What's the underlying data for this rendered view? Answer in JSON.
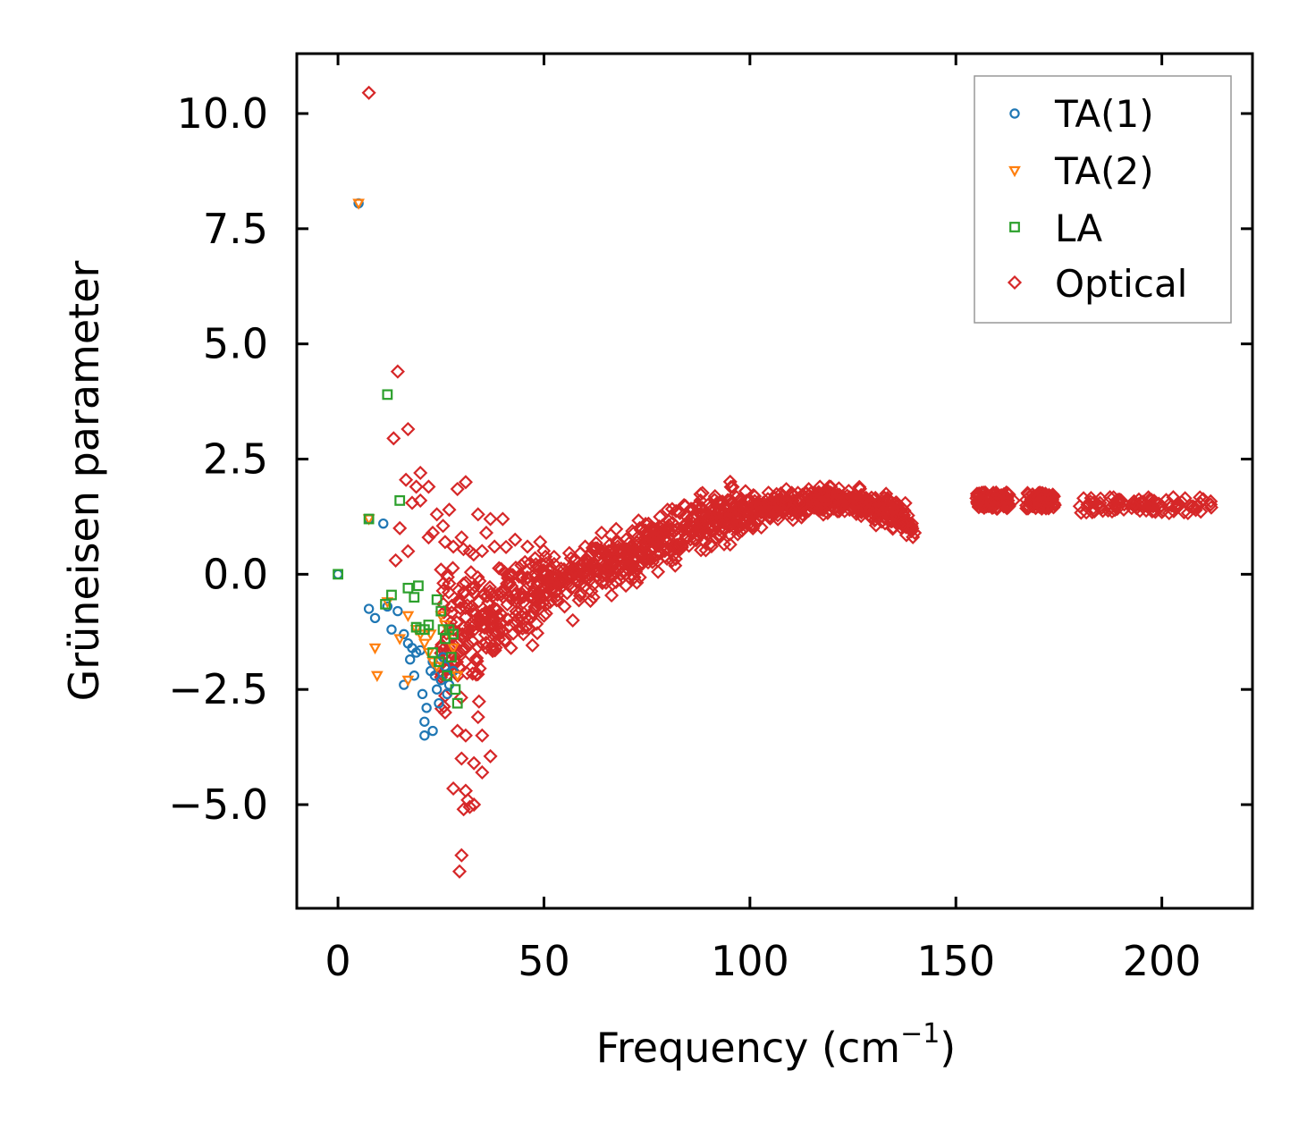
{
  "chart_data": {
    "type": "scatter",
    "title": "",
    "xlabel": "Frequency (cm",
    "xlabel_sup": "−1",
    "xlabel_close": ")",
    "ylabel": "Grüneisen parameter",
    "xlim": [
      -10,
      222
    ],
    "ylim": [
      -7.25,
      11.3
    ],
    "xticks": [
      0,
      50,
      100,
      150,
      200
    ],
    "xtick_labels": [
      "0",
      "50",
      "100",
      "150",
      "200"
    ],
    "yticks": [
      -5.0,
      -2.5,
      0.0,
      2.5,
      5.0,
      7.5,
      10.0
    ],
    "ytick_labels": [
      "−5.0",
      "−2.5",
      "0.0",
      "2.5",
      "5.0",
      "7.5",
      "10.0"
    ],
    "grid": false,
    "legend_position": "top-right",
    "series": [
      {
        "name": "TA(1)",
        "marker": "circle",
        "color": "#1f77b4",
        "points": [
          [
            0,
            0
          ],
          [
            5,
            8.05
          ],
          [
            7.5,
            1.2
          ],
          [
            11,
            1.1
          ],
          [
            7.5,
            -0.75
          ],
          [
            9,
            -0.95
          ],
          [
            12,
            -0.7
          ],
          [
            13,
            -1.2
          ],
          [
            14.5,
            -0.8
          ],
          [
            16,
            -1.3
          ],
          [
            17,
            -1.5
          ],
          [
            18,
            -1.6
          ],
          [
            19,
            -1.7
          ],
          [
            20,
            -1.65
          ],
          [
            18.5,
            -2.2
          ],
          [
            16,
            -2.4
          ],
          [
            20.5,
            -2.6
          ],
          [
            21.5,
            -2.9
          ],
          [
            21,
            -3.2
          ],
          [
            21,
            -3.5
          ],
          [
            23,
            -3.4
          ],
          [
            22.5,
            -2.1
          ],
          [
            23.5,
            -2.2
          ],
          [
            24,
            -2.5
          ],
          [
            24.5,
            -2.8
          ],
          [
            25,
            -2.3
          ],
          [
            26,
            -2.0
          ],
          [
            26.5,
            -2.6
          ],
          [
            27,
            -2.4
          ],
          [
            28,
            -2.1
          ],
          [
            23,
            -1.9
          ],
          [
            25.5,
            -1.8
          ],
          [
            17.5,
            -1.85
          ]
        ]
      },
      {
        "name": "TA(2)",
        "marker": "triangle-down",
        "color": "#ff7f0e",
        "points": [
          [
            5,
            8.05
          ],
          [
            7.5,
            1.2
          ],
          [
            9,
            -1.6
          ],
          [
            9.5,
            -2.2
          ],
          [
            12,
            -0.6
          ],
          [
            15,
            -1.4
          ],
          [
            17,
            -0.9
          ],
          [
            17,
            -2.3
          ],
          [
            19,
            -1.2
          ],
          [
            20,
            -1.3
          ],
          [
            21,
            -1.5
          ],
          [
            22,
            -1.7
          ],
          [
            23,
            -1.9
          ],
          [
            24,
            -2.0
          ],
          [
            25,
            -0.9
          ],
          [
            26,
            -1.1
          ],
          [
            27,
            -1.3
          ],
          [
            28,
            -1.6
          ],
          [
            29,
            -2.2
          ],
          [
            22.5,
            -1.3
          ]
        ]
      },
      {
        "name": "LA",
        "marker": "square",
        "color": "#2ca02c",
        "points": [
          [
            0,
            0
          ],
          [
            7.5,
            1.2
          ],
          [
            12,
            3.9
          ],
          [
            15,
            1.6
          ],
          [
            11.5,
            -0.65
          ],
          [
            13,
            -0.45
          ],
          [
            17,
            -0.3
          ],
          [
            18.5,
            -0.5
          ],
          [
            19.5,
            -0.25
          ],
          [
            19,
            -1.15
          ],
          [
            20,
            -1.2
          ],
          [
            21,
            -1.2
          ],
          [
            22,
            -1.1
          ],
          [
            23,
            -1.7
          ],
          [
            24,
            -0.55
          ],
          [
            25,
            -0.8
          ],
          [
            25.5,
            -1.2
          ],
          [
            26,
            -1.4
          ],
          [
            27,
            -1.2
          ],
          [
            27.5,
            -1.8
          ],
          [
            28,
            -1.3
          ],
          [
            28.5,
            -2.5
          ],
          [
            29,
            -2.8
          ],
          [
            26.5,
            -2.2
          ],
          [
            24.5,
            -1.9
          ]
        ]
      },
      {
        "name": "Optical",
        "marker": "diamond",
        "color": "#d62728",
        "points": [
          [
            7.5,
            10.45
          ],
          [
            14.5,
            4.4
          ],
          [
            13.5,
            2.95
          ],
          [
            17,
            3.15
          ],
          [
            16.5,
            2.05
          ],
          [
            19,
            1.9
          ],
          [
            20,
            2.2
          ],
          [
            22,
            1.9
          ],
          [
            18,
            1.55
          ],
          [
            20,
            1.6
          ],
          [
            24,
            1.3
          ],
          [
            25.5,
            1.05
          ],
          [
            27,
            1.4
          ],
          [
            29,
            1.85
          ],
          [
            31,
            2.0
          ],
          [
            34,
            1.3
          ],
          [
            37,
            1.2
          ],
          [
            40,
            1.2
          ],
          [
            43,
            0.75
          ],
          [
            46,
            0.6
          ],
          [
            15,
            1.0
          ],
          [
            17,
            0.5
          ],
          [
            14,
            0.3
          ],
          [
            22,
            0.8
          ],
          [
            23,
            0.9
          ],
          [
            26,
            0.7
          ],
          [
            28,
            0.6
          ],
          [
            30,
            0.8
          ],
          [
            32,
            0.5
          ],
          [
            36,
            0.9
          ],
          [
            38,
            0.6
          ],
          [
            25,
            0.1
          ],
          [
            27,
            -0.2
          ],
          [
            33,
            -0.4
          ],
          [
            29,
            -3.4
          ],
          [
            31,
            -3.5
          ],
          [
            35,
            -3.5
          ],
          [
            30,
            -4.0
          ],
          [
            33,
            -4.1
          ],
          [
            35,
            -4.3
          ],
          [
            37,
            -3.95
          ],
          [
            28,
            -4.65
          ],
          [
            31,
            -4.7
          ],
          [
            31.5,
            -4.9
          ],
          [
            32,
            -5.05
          ],
          [
            33,
            -5.0
          ],
          [
            30.5,
            -5.1
          ],
          [
            30,
            -6.1
          ],
          [
            29.5,
            -6.45
          ],
          [
            26,
            -3.0
          ],
          [
            34,
            -3.1
          ],
          [
            42,
            -1.6
          ],
          [
            45,
            -1.3
          ],
          [
            50,
            -0.9
          ],
          [
            55,
            -0.7
          ],
          [
            57,
            -1.0
          ],
          [
            62,
            -0.5
          ],
          [
            60,
            0.6
          ],
          [
            64,
            0.9
          ],
          [
            68,
            0.7
          ],
          [
            72,
            0.5
          ],
          [
            75,
            0.8
          ],
          [
            78,
            0.8
          ],
          [
            80,
            1.4
          ],
          [
            84,
            1.5
          ],
          [
            88,
            1.6
          ],
          [
            92,
            1.3
          ],
          [
            96,
            1.55
          ],
          [
            100,
            1.6
          ],
          [
            104,
            1.5
          ],
          [
            108,
            1.7
          ],
          [
            112,
            1.55
          ],
          [
            117,
            1.9
          ],
          [
            120,
            1.75
          ],
          [
            124,
            1.65
          ],
          [
            128,
            1.55
          ],
          [
            132,
            1.45
          ],
          [
            136,
            1.4
          ],
          [
            140,
            0.9
          ],
          [
            138,
            0.85
          ],
          [
            155,
            1.65
          ],
          [
            158,
            1.6
          ],
          [
            161,
            1.7
          ],
          [
            164,
            1.6
          ],
          [
            169,
            1.7
          ],
          [
            172,
            1.6
          ],
          [
            174,
            1.5
          ],
          [
            181,
            1.65
          ],
          [
            185,
            1.55
          ],
          [
            189,
            1.6
          ],
          [
            193,
            1.5
          ],
          [
            197,
            1.45
          ],
          [
            200,
            1.35
          ],
          [
            204,
            1.5
          ],
          [
            208,
            1.45
          ],
          [
            212,
            1.45
          ]
        ]
      }
    ],
    "optical_band": {
      "name": "Optical",
      "color": "#d62728",
      "centerline": [
        [
          25,
          -1.6
        ],
        [
          30,
          -1.2
        ],
        [
          35,
          -0.9
        ],
        [
          40,
          -0.6
        ],
        [
          50,
          -0.3
        ],
        [
          60,
          0.0
        ],
        [
          70,
          0.35
        ],
        [
          80,
          0.8
        ],
        [
          90,
          1.15
        ],
        [
          100,
          1.35
        ],
        [
          110,
          1.5
        ],
        [
          120,
          1.6
        ],
        [
          130,
          1.45
        ],
        [
          137,
          1.3
        ],
        [
          140,
          0.9
        ]
      ],
      "segments": [
        [
          155,
          163,
          1.6
        ],
        [
          167,
          174,
          1.6
        ],
        [
          180,
          212,
          1.5
        ]
      ]
    }
  }
}
